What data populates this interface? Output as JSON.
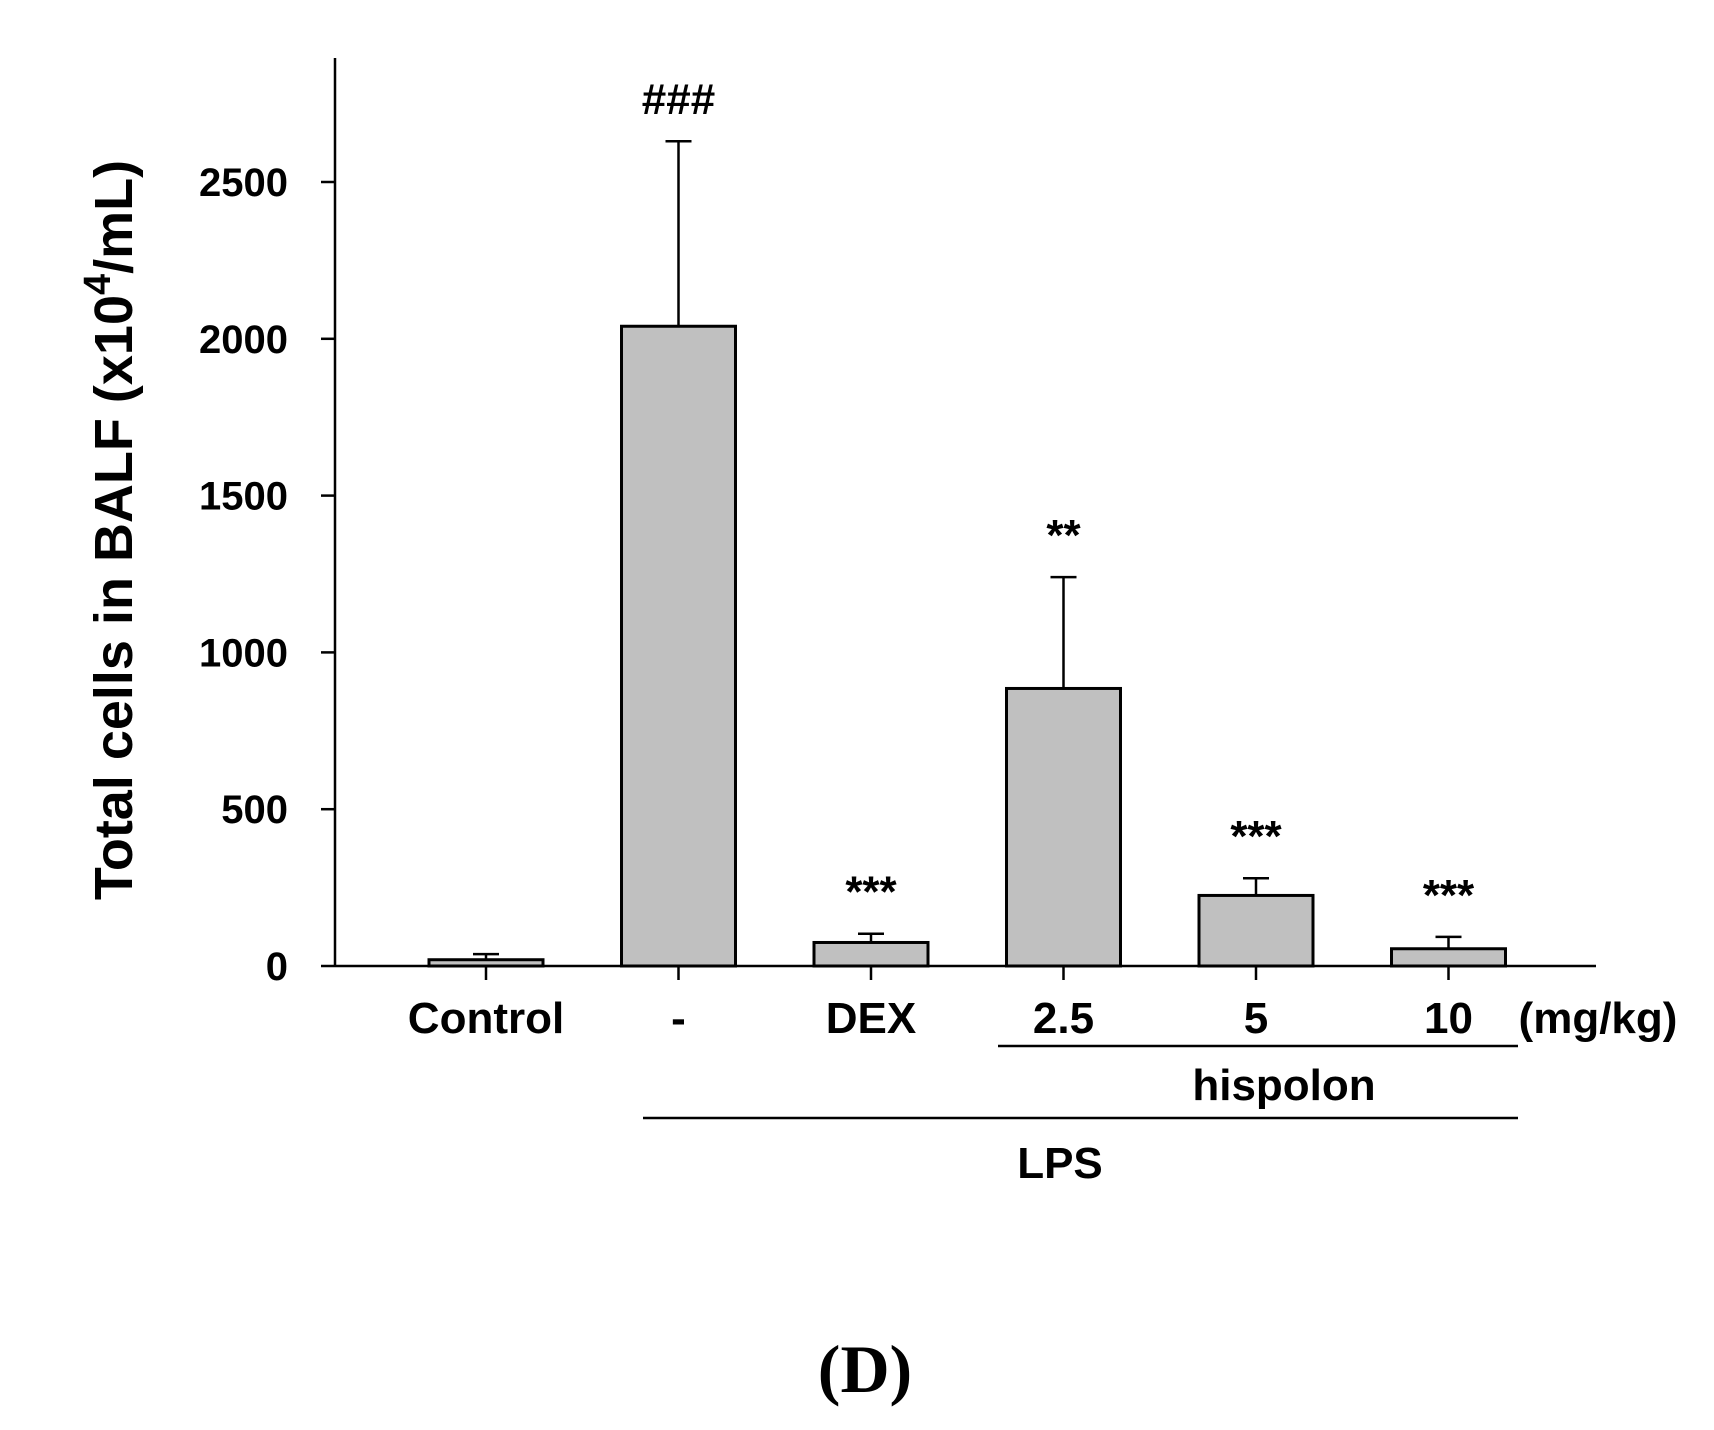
{
  "chart_data": {
    "type": "bar",
    "categories": [
      "Control",
      "-",
      "DEX",
      "2.5",
      "5",
      "10"
    ],
    "values": [
      20,
      2040,
      75,
      885,
      225,
      55
    ],
    "errors": [
      18,
      590,
      28,
      355,
      55,
      38
    ],
    "annotations": [
      "",
      "###",
      "***",
      "**",
      "***",
      "***"
    ],
    "unit_label": "(mg/kg)",
    "ylabel": "Total cells in BALF (x10",
    "ylabel_sup": "4",
    "ylabel_end": "/mL)",
    "ylim": [
      0,
      2880
    ],
    "yticks": [
      0,
      500,
      1000,
      1500,
      2000,
      2500
    ],
    "groups": [
      {
        "label": "hispolon",
        "from": 3,
        "to": 5
      },
      {
        "label": "LPS",
        "from": 1,
        "to": 5
      }
    ],
    "panel_label": "(D)",
    "colors": {
      "bar": "#c0c0c0",
      "stroke": "#000000"
    }
  }
}
